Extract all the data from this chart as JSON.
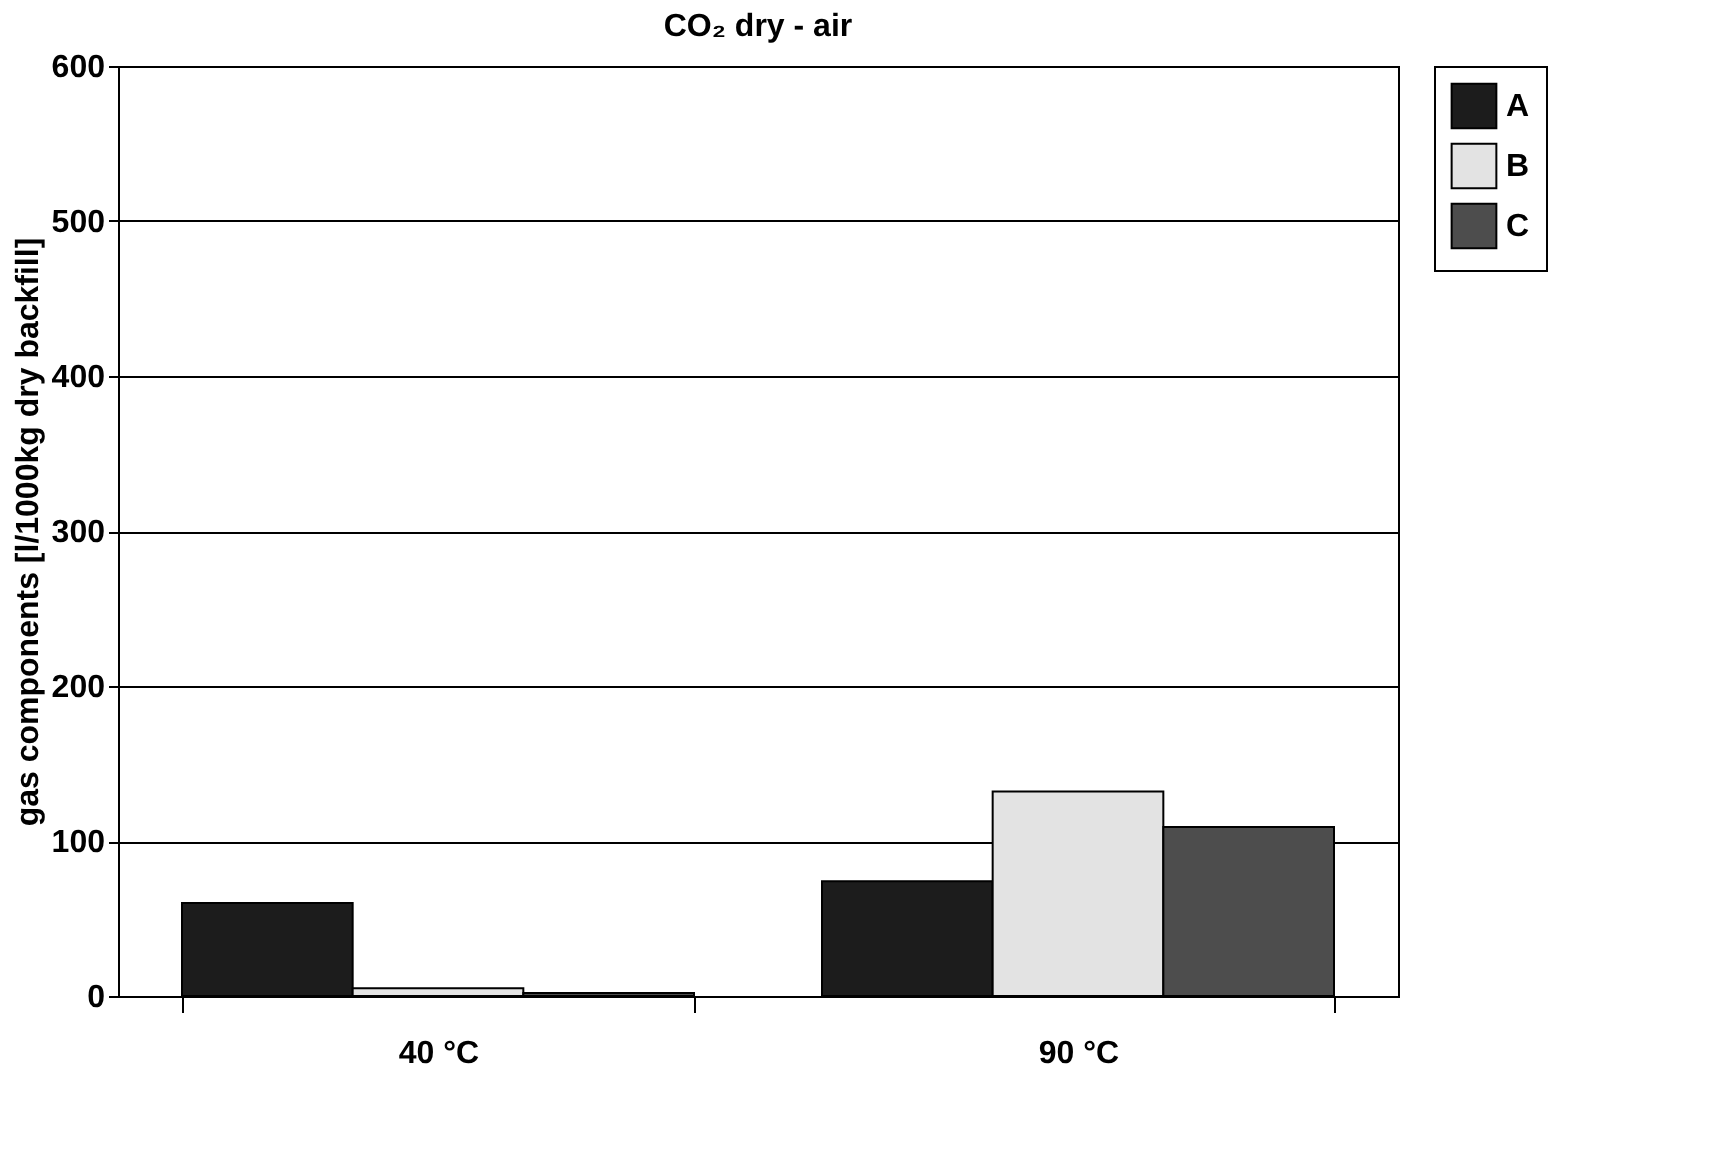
{
  "chart_data": {
    "type": "bar",
    "title": "CO₂ dry - air",
    "ylabel": "gas components [l/1000kg dry backfill]",
    "categories": [
      "40 °C",
      "90 °C"
    ],
    "series": [
      {
        "name": "A",
        "color": "#1c1c1c",
        "values": [
          60,
          74
        ]
      },
      {
        "name": "B",
        "color": "#e3e3e3",
        "values": [
          5,
          132
        ]
      },
      {
        "name": "C",
        "color": "#4d4d4d",
        "values": [
          2,
          109
        ]
      }
    ],
    "ylim": [
      0,
      600
    ],
    "yticks": [
      0,
      100,
      200,
      300,
      400,
      500,
      600
    ],
    "grid": "y",
    "legend": "top right"
  }
}
